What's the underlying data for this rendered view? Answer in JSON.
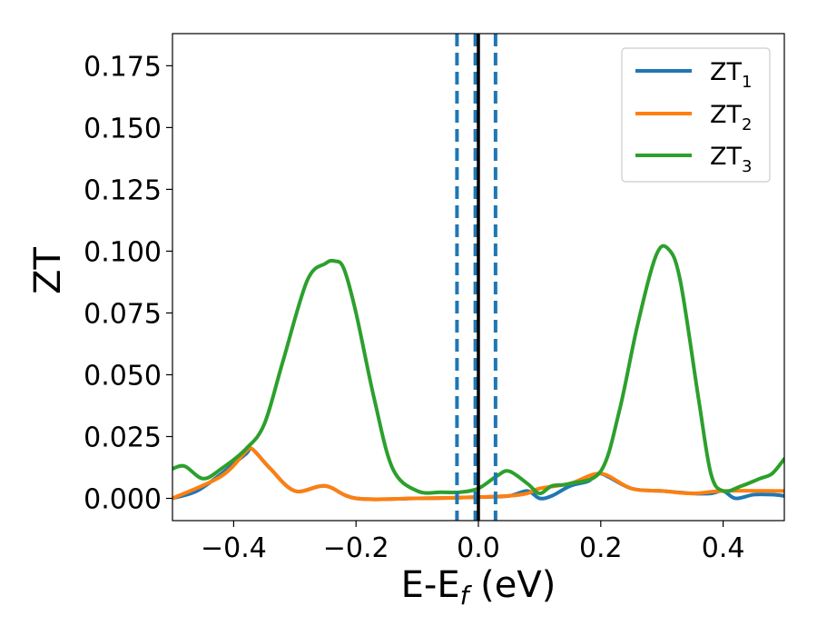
{
  "chart_data": {
    "type": "line",
    "title": "",
    "xlabel_main": "E-E",
    "xlabel_sub": "f",
    "xlabel_unit": " (eV)",
    "ylabel": "ZT",
    "xlim": [
      -0.5,
      0.5
    ],
    "ylim": [
      -0.009,
      0.188
    ],
    "xticks": [
      -0.4,
      -0.2,
      0.0,
      0.2,
      0.4
    ],
    "xtick_labels": [
      "−0.4",
      "−0.2",
      "0.0",
      "0.2",
      "0.4"
    ],
    "yticks": [
      0.0,
      0.025,
      0.05,
      0.075,
      0.1,
      0.125,
      0.15,
      0.175
    ],
    "ytick_labels": [
      "0.000",
      "0.025",
      "0.050",
      "0.075",
      "0.100",
      "0.125",
      "0.150",
      "0.175"
    ],
    "grid": false,
    "legend_position": "top-right",
    "vertical_lines": [
      {
        "x": -0.035,
        "style": "dashed",
        "color": "#1f77b4"
      },
      {
        "x": -0.005,
        "style": "dashed",
        "color": "#1f77b4"
      },
      {
        "x": 0.028,
        "style": "dashed",
        "color": "#1f77b4"
      },
      {
        "x": 0.0,
        "style": "solid",
        "color": "#000000"
      }
    ],
    "series": [
      {
        "name_main": "ZT",
        "name_sub": "1",
        "color": "#1f77b4",
        "x": [
          -0.5,
          -0.46,
          -0.42,
          -0.38,
          -0.37,
          -0.34,
          -0.3,
          -0.25,
          -0.2,
          -0.1,
          0.0,
          0.05,
          0.08,
          0.1,
          0.12,
          0.15,
          0.18,
          0.2,
          0.25,
          0.3,
          0.35,
          0.38,
          0.4,
          0.42,
          0.45,
          0.48,
          0.5
        ],
        "y": [
          0.0,
          0.003,
          0.01,
          0.018,
          0.02,
          0.012,
          0.003,
          0.005,
          0.0,
          0.0,
          0.0005,
          0.001,
          0.003,
          0.0,
          0.001,
          0.005,
          0.007,
          0.01,
          0.004,
          0.003,
          0.002,
          0.002,
          0.003,
          0.0,
          0.0015,
          0.0015,
          0.001
        ]
      },
      {
        "name_main": "ZT",
        "name_sub": "2",
        "color": "#ff7f0e",
        "x": [
          -0.5,
          -0.42,
          -0.38,
          -0.37,
          -0.34,
          -0.3,
          -0.25,
          -0.2,
          -0.1,
          0.0,
          0.05,
          0.08,
          0.1,
          0.15,
          0.2,
          0.25,
          0.3,
          0.35,
          0.4,
          0.5
        ],
        "y": [
          0.0,
          0.009,
          0.019,
          0.02,
          0.012,
          0.003,
          0.005,
          0.0,
          0.0,
          0.0005,
          0.001,
          0.002,
          0.004,
          0.006,
          0.01,
          0.004,
          0.003,
          0.002,
          0.003,
          0.003
        ]
      },
      {
        "name_main": "ZT",
        "name_sub": "3",
        "color": "#2ca02c",
        "x": [
          -0.5,
          -0.48,
          -0.45,
          -0.42,
          -0.38,
          -0.35,
          -0.32,
          -0.28,
          -0.25,
          -0.235,
          -0.22,
          -0.2,
          -0.17,
          -0.14,
          -0.1,
          -0.06,
          -0.03,
          0.0,
          0.03,
          0.05,
          0.08,
          0.1,
          0.12,
          0.15,
          0.2,
          0.23,
          0.26,
          0.29,
          0.31,
          0.33,
          0.36,
          0.38,
          0.4,
          0.43,
          0.46,
          0.48,
          0.5
        ],
        "y": [
          0.012,
          0.013,
          0.008,
          0.012,
          0.02,
          0.03,
          0.055,
          0.088,
          0.095,
          0.096,
          0.093,
          0.075,
          0.04,
          0.012,
          0.003,
          0.0025,
          0.0025,
          0.004,
          0.009,
          0.011,
          0.006,
          0.002,
          0.005,
          0.006,
          0.011,
          0.035,
          0.07,
          0.098,
          0.101,
          0.088,
          0.04,
          0.01,
          0.003,
          0.005,
          0.008,
          0.01,
          0.016
        ]
      }
    ]
  }
}
